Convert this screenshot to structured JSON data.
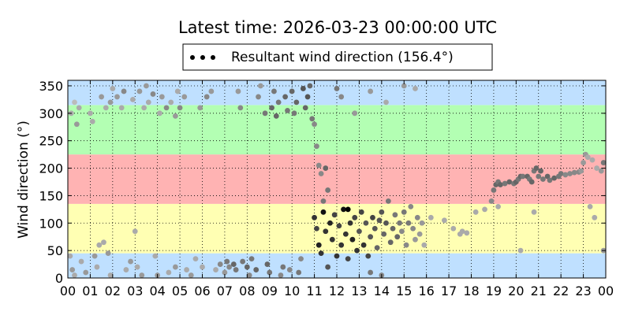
{
  "chart_data": {
    "type": "scatter",
    "title": "Latest time: 2026-03-23 00:00:00 UTC",
    "ylabel": "Wind direction (°)",
    "xlabel": "",
    "xlim": [
      0,
      24
    ],
    "ylim": [
      0,
      360
    ],
    "x_ticks": [
      0,
      1,
      2,
      3,
      4,
      5,
      6,
      7,
      8,
      9,
      10,
      11,
      12,
      13,
      14,
      15,
      16,
      17,
      18,
      19,
      20,
      21,
      22,
      23,
      24
    ],
    "x_tick_labels": [
      "00",
      "01",
      "02",
      "03",
      "04",
      "05",
      "06",
      "07",
      "08",
      "09",
      "10",
      "11",
      "12",
      "13",
      "14",
      "15",
      "16",
      "17",
      "18",
      "19",
      "20",
      "21",
      "22",
      "23",
      "00"
    ],
    "y_ticks": [
      0,
      50,
      100,
      150,
      200,
      250,
      300,
      350
    ],
    "y_tick_labels": [
      "0",
      "50",
      "100",
      "150",
      "200",
      "250",
      "300",
      "350"
    ],
    "grid": true,
    "legend": {
      "placement": "top-center",
      "entries": [
        "Resultant wind direction (156.4°)"
      ]
    },
    "bands": [
      {
        "from": 0,
        "to": 45,
        "color": "#bfe0ff"
      },
      {
        "from": 45,
        "to": 135,
        "color": "#ffffb3"
      },
      {
        "from": 135,
        "to": 225,
        "color": "#ffb3b3"
      },
      {
        "from": 225,
        "to": 315,
        "color": "#b3ffb3"
      },
      {
        "from": 315,
        "to": 360,
        "color": "#bfe0ff"
      }
    ],
    "series": [
      {
        "name": "Resultant wind direction (156.4°)",
        "points": [
          [
            0.1,
            40,
            "#aaaaaa"
          ],
          [
            0.2,
            15,
            "#999999"
          ],
          [
            0.3,
            5,
            "#aaaaaa"
          ],
          [
            0.15,
            300,
            "#aaaaaa"
          ],
          [
            0.4,
            280,
            "#999999"
          ],
          [
            0.5,
            310,
            "#aaaaaa"
          ],
          [
            0.3,
            320,
            "#bbbbbb"
          ],
          [
            0.6,
            30,
            "#aaaaaa"
          ],
          [
            0.8,
            10,
            "#999999"
          ],
          [
            1.0,
            300,
            "#aaaaaa"
          ],
          [
            1.1,
            285,
            "#aaaaaa"
          ],
          [
            1.2,
            40,
            "#999999"
          ],
          [
            1.3,
            20,
            "#aaaaaa"
          ],
          [
            1.4,
            60,
            "#aaaaaa"
          ],
          [
            1.6,
            65,
            "#aaaaaa"
          ],
          [
            1.8,
            45,
            "#999999"
          ],
          [
            1.9,
            5,
            "#aaaaaa"
          ],
          [
            1.5,
            330,
            "#999999"
          ],
          [
            1.7,
            310,
            "#aaaaaa"
          ],
          [
            1.9,
            320,
            "#999999"
          ],
          [
            2.0,
            345,
            "#aaaaaa"
          ],
          [
            2.2,
            330,
            "#999999"
          ],
          [
            2.4,
            310,
            "#aaaaaa"
          ],
          [
            2.5,
            340,
            "#888888"
          ],
          [
            2.6,
            15,
            "#aaaaaa"
          ],
          [
            2.8,
            30,
            "#999999"
          ],
          [
            3.0,
            85,
            "#aaaaaa"
          ],
          [
            3.1,
            20,
            "#aaaaaa"
          ],
          [
            3.3,
            5,
            "#999999"
          ],
          [
            2.9,
            325,
            "#aaaaaa"
          ],
          [
            3.2,
            340,
            "#999999"
          ],
          [
            3.4,
            310,
            "#aaaaaa"
          ],
          [
            3.5,
            350,
            "#999999"
          ],
          [
            3.6,
            320,
            "#aaaaaa"
          ],
          [
            3.8,
            335,
            "#888888"
          ],
          [
            3.9,
            40,
            "#aaaaaa"
          ],
          [
            4.0,
            5,
            "#999999"
          ],
          [
            4.1,
            300,
            "#aaaaaa"
          ],
          [
            4.2,
            330,
            "#999999"
          ],
          [
            4.4,
            310,
            "#888888"
          ],
          [
            4.6,
            320,
            "#aaaaaa"
          ],
          [
            4.8,
            295,
            "#999999"
          ],
          [
            4.9,
            340,
            "#aaaaaa"
          ],
          [
            4.5,
            10,
            "#aaaaaa"
          ],
          [
            4.8,
            20,
            "#999999"
          ],
          [
            5.0,
            310,
            "#888888"
          ],
          [
            5.2,
            330,
            "#999999"
          ],
          [
            5.3,
            15,
            "#aaaaaa"
          ],
          [
            5.5,
            5,
            "#999999"
          ],
          [
            5.7,
            35,
            "#aaaaaa"
          ],
          [
            5.9,
            310,
            "#999999"
          ],
          [
            6.0,
            20,
            "#aaaaaa"
          ],
          [
            6.2,
            330,
            "#888888"
          ],
          [
            6.4,
            340,
            "#999999"
          ],
          [
            6.6,
            15,
            "#aaaaaa"
          ],
          [
            6.8,
            25,
            "#888888"
          ],
          [
            7.0,
            10,
            "#999999"
          ],
          [
            7.1,
            30,
            "#777777"
          ],
          [
            7.2,
            20,
            "#888888"
          ],
          [
            7.4,
            25,
            "#666666"
          ],
          [
            7.5,
            15,
            "#777777"
          ],
          [
            7.6,
            340,
            "#999999"
          ],
          [
            7.7,
            310,
            "#888888"
          ],
          [
            7.8,
            30,
            "#777777"
          ],
          [
            8.0,
            20,
            "#666666"
          ],
          [
            8.1,
            5,
            "#888888"
          ],
          [
            8.2,
            35,
            "#777777"
          ],
          [
            8.4,
            15,
            "#666666"
          ],
          [
            8.5,
            330,
            "#888888"
          ],
          [
            8.6,
            350,
            "#999999"
          ],
          [
            8.8,
            300,
            "#777777"
          ],
          [
            8.9,
            25,
            "#666666"
          ],
          [
            9.0,
            10,
            "#777777"
          ],
          [
            9.1,
            310,
            "#666666"
          ],
          [
            9.2,
            340,
            "#777777"
          ],
          [
            9.3,
            295,
            "#666666"
          ],
          [
            9.4,
            320,
            "#777777"
          ],
          [
            9.5,
            5,
            "#888888"
          ],
          [
            9.6,
            20,
            "#777777"
          ],
          [
            9.7,
            330,
            "#666666"
          ],
          [
            9.8,
            305,
            "#777777"
          ],
          [
            9.9,
            15,
            "#888888"
          ],
          [
            10.0,
            340,
            "#666666"
          ],
          [
            10.1,
            300,
            "#777777"
          ],
          [
            10.2,
            320,
            "#666666"
          ],
          [
            10.3,
            10,
            "#777777"
          ],
          [
            10.4,
            35,
            "#888888"
          ],
          [
            10.5,
            345,
            "#555555"
          ],
          [
            10.6,
            310,
            "#666666"
          ],
          [
            10.7,
            330,
            "#555555"
          ],
          [
            10.8,
            350,
            "#666666"
          ],
          [
            10.9,
            290,
            "#777777"
          ],
          [
            11.0,
            280,
            "#888888"
          ],
          [
            11.1,
            240,
            "#888888"
          ],
          [
            11.2,
            205,
            "#888888"
          ],
          [
            11.3,
            190,
            "#888888"
          ],
          [
            11.4,
            140,
            "#777777"
          ],
          [
            11.5,
            200,
            "#666666"
          ],
          [
            11.6,
            160,
            "#777777"
          ],
          [
            11.0,
            110,
            "#333333"
          ],
          [
            11.1,
            90,
            "#444444"
          ],
          [
            11.2,
            60,
            "#222222"
          ],
          [
            11.3,
            45,
            "#333333"
          ],
          [
            11.4,
            120,
            "#111111"
          ],
          [
            11.5,
            85,
            "#333333"
          ],
          [
            11.6,
            20,
            "#555555"
          ],
          [
            11.7,
            100,
            "#222222"
          ],
          [
            11.8,
            70,
            "#333333"
          ],
          [
            11.9,
            115,
            "#444444"
          ],
          [
            12.0,
            40,
            "#333333"
          ],
          [
            12.1,
            95,
            "#444444"
          ],
          [
            12.2,
            60,
            "#333333"
          ],
          [
            12.3,
            125,
            "#111111"
          ],
          [
            12.4,
            80,
            "#333333"
          ],
          [
            12.5,
            35,
            "#444444"
          ],
          [
            12.5,
            125,
            "#000000"
          ],
          [
            12.6,
            100,
            "#333333"
          ],
          [
            12.7,
            70,
            "#222222"
          ],
          [
            12.8,
            110,
            "#444444"
          ],
          [
            12.9,
            50,
            "#333333"
          ],
          [
            13.0,
            85,
            "#555555"
          ],
          [
            13.1,
            120,
            "#444444"
          ],
          [
            13.2,
            60,
            "#333333"
          ],
          [
            13.3,
            100,
            "#555555"
          ],
          [
            13.4,
            40,
            "#444444"
          ],
          [
            13.5,
            75,
            "#555555"
          ],
          [
            13.6,
            110,
            "#444444"
          ],
          [
            13.7,
            90,
            "#555555"
          ],
          [
            13.8,
            55,
            "#666666"
          ],
          [
            13.9,
            105,
            "#555555"
          ],
          [
            14.0,
            120,
            "#555555"
          ],
          [
            14.1,
            80,
            "#666666"
          ],
          [
            14.2,
            100,
            "#555555"
          ],
          [
            14.3,
            140,
            "#777777"
          ],
          [
            14.4,
            65,
            "#666666"
          ],
          [
            14.5,
            90,
            "#666666"
          ],
          [
            14.6,
            115,
            "#777777"
          ],
          [
            14.7,
            75,
            "#666666"
          ],
          [
            14.8,
            100,
            "#777777"
          ],
          [
            14.9,
            85,
            "#888888"
          ],
          [
            15.0,
            120,
            "#777777"
          ],
          [
            15.1,
            60,
            "#888888"
          ],
          [
            15.2,
            100,
            "#777777"
          ],
          [
            15.3,
            130,
            "#888888"
          ],
          [
            15.4,
            90,
            "#888888"
          ],
          [
            15.5,
            70,
            "#999999"
          ],
          [
            15.6,
            110,
            "#888888"
          ],
          [
            15.7,
            80,
            "#999999"
          ],
          [
            15.8,
            100,
            "#999999"
          ],
          [
            15.9,
            60,
            "#aaaaaa"
          ],
          [
            13.5,
            10,
            "#777777"
          ],
          [
            14.0,
            5,
            "#888888"
          ],
          [
            12.0,
            345,
            "#777777"
          ],
          [
            12.2,
            330,
            "#888888"
          ],
          [
            12.8,
            300,
            "#999999"
          ],
          [
            13.5,
            340,
            "#999999"
          ],
          [
            14.2,
            320,
            "#aaaaaa"
          ],
          [
            15.0,
            350,
            "#999999"
          ],
          [
            15.5,
            345,
            "#aaaaaa"
          ],
          [
            16.2,
            110,
            "#aaaaaa"
          ],
          [
            16.8,
            105,
            "#aaaaaa"
          ],
          [
            17.2,
            90,
            "#aaaaaa"
          ],
          [
            17.5,
            80,
            "#aaaaaa"
          ],
          [
            17.6,
            85,
            "#aaaaaa"
          ],
          [
            17.8,
            82,
            "#aaaaaa"
          ],
          [
            18.2,
            120,
            "#aaaaaa"
          ],
          [
            18.6,
            125,
            "#aaaaaa"
          ],
          [
            18.9,
            140,
            "#888888"
          ],
          [
            19.0,
            160,
            "#777777"
          ],
          [
            19.1,
            170,
            "#666666"
          ],
          [
            19.2,
            175,
            "#777777"
          ],
          [
            19.3,
            170,
            "#666666"
          ],
          [
            19.5,
            172,
            "#777777"
          ],
          [
            19.7,
            175,
            "#666666"
          ],
          [
            19.9,
            172,
            "#777777"
          ],
          [
            20.0,
            175,
            "#666666"
          ],
          [
            20.1,
            180,
            "#777777"
          ],
          [
            20.2,
            185,
            "#666666"
          ],
          [
            20.3,
            185,
            "#777777"
          ],
          [
            20.5,
            185,
            "#666666"
          ],
          [
            20.6,
            180,
            "#777777"
          ],
          [
            20.7,
            175,
            "#666666"
          ],
          [
            20.8,
            195,
            "#777777"
          ],
          [
            20.9,
            200,
            "#666666"
          ],
          [
            21.0,
            185,
            "#777777"
          ],
          [
            21.1,
            195,
            "#666666"
          ],
          [
            21.2,
            180,
            "#777777"
          ],
          [
            21.4,
            185,
            "#666666"
          ],
          [
            21.5,
            178,
            "#777777"
          ],
          [
            21.7,
            182,
            "#666666"
          ],
          [
            21.9,
            185,
            "#777777"
          ],
          [
            22.0,
            190,
            "#777777"
          ],
          [
            22.2,
            188,
            "#888888"
          ],
          [
            22.4,
            190,
            "#888888"
          ],
          [
            22.6,
            192,
            "#888888"
          ],
          [
            22.8,
            193,
            "#888888"
          ],
          [
            22.9,
            195,
            "#999999"
          ],
          [
            23.0,
            210,
            "#999999"
          ],
          [
            23.1,
            225,
            "#999999"
          ],
          [
            23.2,
            220,
            "#aaaaaa"
          ],
          [
            23.4,
            215,
            "#aaaaaa"
          ],
          [
            23.6,
            200,
            "#aaaaaa"
          ],
          [
            23.8,
            195,
            "#999999"
          ],
          [
            23.9,
            210,
            "#777777"
          ],
          [
            23.3,
            130,
            "#aaaaaa"
          ],
          [
            23.5,
            110,
            "#aaaaaa"
          ],
          [
            23.9,
            50,
            "#999999"
          ],
          [
            20.2,
            50,
            "#aaaaaa"
          ],
          [
            20.8,
            120,
            "#aaaaaa"
          ],
          [
            19.2,
            130,
            "#aaaaaa"
          ]
        ]
      }
    ]
  }
}
